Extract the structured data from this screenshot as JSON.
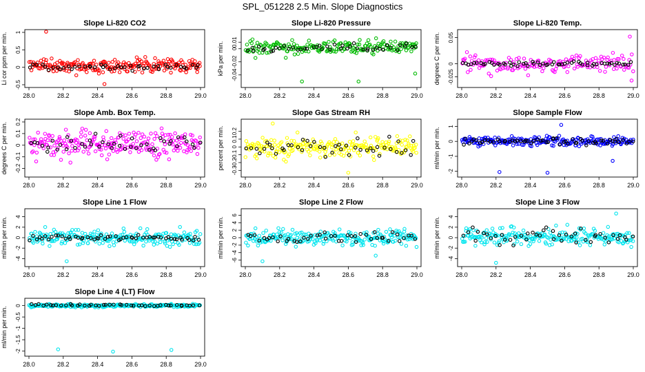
{
  "figure": {
    "title": "SPL_051228  2.5 Min. Slope Diagnostics"
  },
  "chart_data": [
    {
      "type": "scatter",
      "title": "Slope Li-820 CO2",
      "ylabel": "Li cor ppm per min.",
      "xlim": [
        28.0,
        29.0
      ],
      "ylim": [
        -0.5,
        1.0
      ],
      "yticks": [
        -0.5,
        0.0,
        0.5,
        1.0
      ],
      "xticks": [
        28.0,
        28.2,
        28.4,
        28.6,
        28.8,
        29.0
      ],
      "series": [
        {
          "name": "cloud",
          "color": "#ff0000",
          "seed": 11,
          "n": 220,
          "center": 0.05,
          "spread": 0.14
        },
        {
          "name": "overlay",
          "color": "#000000",
          "seed": 12,
          "n": 45,
          "center": 0.02,
          "spread": 0.08
        }
      ],
      "outliers": [
        {
          "x": 28.1,
          "y": 1.02
        },
        {
          "x": 28.44,
          "y": -0.48
        }
      ]
    },
    {
      "type": "scatter",
      "title": "Slope Li-820 Pressure",
      "ylabel": "kPa per min.",
      "xlim": [
        28.0,
        29.0
      ],
      "ylim": [
        -0.055,
        0.025
      ],
      "yticks": [
        -0.04,
        -0.02,
        0.0,
        0.01
      ],
      "xticks": [
        28.0,
        28.2,
        28.4,
        28.6,
        28.8,
        29.0
      ],
      "series": [
        {
          "name": "cloud",
          "color": "#00bb00",
          "seed": 21,
          "n": 200,
          "center": 0.002,
          "spread": 0.008
        },
        {
          "name": "overlay",
          "color": "#000000",
          "seed": 22,
          "n": 45,
          "center": 0.002,
          "spread": 0.004
        }
      ],
      "outliers": [
        {
          "x": 28.33,
          "y": -0.05
        },
        {
          "x": 28.66,
          "y": -0.05
        },
        {
          "x": 28.99,
          "y": -0.038
        }
      ]
    },
    {
      "type": "scatter",
      "title": "Slope Li-820 Temp.",
      "ylabel": "degrees C per min.",
      "xlim": [
        28.0,
        29.0
      ],
      "ylim": [
        -0.04,
        0.06
      ],
      "yticks": [
        -0.025,
        0.0,
        0.05
      ],
      "xticks": [
        28.0,
        28.2,
        28.4,
        28.6,
        28.8,
        29.0
      ],
      "series": [
        {
          "name": "cloud",
          "color": "#ff00ff",
          "seed": 31,
          "n": 160,
          "center": 0.0,
          "spread": 0.013
        },
        {
          "name": "overlay",
          "color": "#000000",
          "seed": 32,
          "n": 60,
          "center": 0.0,
          "spread": 0.003
        }
      ],
      "outliers": [
        {
          "x": 28.98,
          "y": 0.052
        },
        {
          "x": 28.99,
          "y": -0.032
        }
      ]
    },
    {
      "type": "scatter",
      "title": "Slope Amb. Box Temp.",
      "ylabel": "degrees C per min.",
      "xlim": [
        28.0,
        29.0
      ],
      "ylim": [
        -0.25,
        0.2
      ],
      "yticks": [
        -0.2,
        -0.1,
        0.0,
        0.1,
        0.2
      ],
      "xticks": [
        28.0,
        28.2,
        28.4,
        28.6,
        28.8,
        29.0
      ],
      "series": [
        {
          "name": "cloud",
          "color": "#ff00ff",
          "seed": 41,
          "n": 230,
          "center": 0.01,
          "spread": 0.08
        },
        {
          "name": "overlay",
          "color": "#000000",
          "seed": 42,
          "n": 45,
          "center": 0.01,
          "spread": 0.05
        }
      ],
      "outliers": []
    },
    {
      "type": "scatter",
      "title": "Slope Gas Stream RH",
      "ylabel": "percent per min.",
      "xlim": [
        28.0,
        29.0
      ],
      "ylim": [
        -0.35,
        0.32
      ],
      "yticks": [
        -0.3,
        -0.2,
        -0.1,
        0.0,
        0.1,
        0.2
      ],
      "xticks": [
        28.0,
        28.2,
        28.4,
        28.6,
        28.8,
        29.0
      ],
      "series": [
        {
          "name": "cloud",
          "color": "#ffff00",
          "seed": 51,
          "n": 230,
          "center": 0.0,
          "spread": 0.09
        },
        {
          "name": "overlay",
          "color": "#000000",
          "seed": 52,
          "n": 45,
          "center": 0.0,
          "spread": 0.08
        }
      ],
      "outliers": [
        {
          "x": 28.16,
          "y": 0.3
        },
        {
          "x": 28.6,
          "y": -0.33
        }
      ]
    },
    {
      "type": "scatter",
      "title": "Slope Sample Flow",
      "ylabel": "ml/min per min.",
      "xlim": [
        28.0,
        29.0
      ],
      "ylim": [
        -2.2,
        1.3
      ],
      "yticks": [
        -2.0,
        -1.0,
        0.0,
        1.0
      ],
      "xticks": [
        28.0,
        28.2,
        28.4,
        28.6,
        28.8,
        29.0
      ],
      "series": [
        {
          "name": "cloud",
          "color": "#0000ff",
          "seed": 61,
          "n": 220,
          "center": 0.0,
          "spread": 0.22
        },
        {
          "name": "overlay",
          "color": "#000000",
          "seed": 62,
          "n": 60,
          "center": 0.0,
          "spread": 0.15
        }
      ],
      "outliers": [
        {
          "x": 28.22,
          "y": -2.05
        },
        {
          "x": 28.5,
          "y": -2.1
        },
        {
          "x": 28.88,
          "y": -1.3
        },
        {
          "x": 28.58,
          "y": 1.1
        }
      ]
    },
    {
      "type": "scatter",
      "title": "Slope Line 1 Flow",
      "ylabel": "ml/min per min.",
      "xlim": [
        28.0,
        29.0
      ],
      "ylim": [
        -5,
        5
      ],
      "yticks": [
        -4,
        -2,
        0,
        2,
        4
      ],
      "xticks": [
        28.0,
        28.2,
        28.4,
        28.6,
        28.8,
        29.0
      ],
      "series": [
        {
          "name": "cloud",
          "color": "#00e5ee",
          "seed": 71,
          "n": 230,
          "center": 0.0,
          "spread": 1.0
        },
        {
          "name": "overlay",
          "color": "#000000",
          "seed": 72,
          "n": 55,
          "center": 0.0,
          "spread": 0.3
        }
      ],
      "outliers": [
        {
          "x": 28.22,
          "y": -4.5
        }
      ]
    },
    {
      "type": "scatter",
      "title": "Slope Line 2 Flow",
      "ylabel": "ml/min per min.",
      "xlim": [
        28.0,
        29.0
      ],
      "ylim": [
        -7,
        7
      ],
      "yticks": [
        -6,
        -4,
        -2,
        0,
        2,
        4,
        6
      ],
      "xticks": [
        28.0,
        28.2,
        28.4,
        28.6,
        28.8,
        29.0
      ],
      "series": [
        {
          "name": "cloud",
          "color": "#00e5ee",
          "seed": 81,
          "n": 230,
          "center": 0.0,
          "spread": 1.4
        },
        {
          "name": "overlay",
          "color": "#000000",
          "seed": 82,
          "n": 45,
          "center": 0.0,
          "spread": 1.2
        }
      ],
      "outliers": [
        {
          "x": 28.1,
          "y": -6.3
        },
        {
          "x": 28.76,
          "y": -4.8
        }
      ]
    },
    {
      "type": "scatter",
      "title": "Slope Line 3 Flow",
      "ylabel": "ml/min per min.",
      "xlim": [
        28.0,
        29.0
      ],
      "ylim": [
        -5,
        5
      ],
      "yticks": [
        -4,
        -2,
        0,
        2,
        4
      ],
      "xticks": [
        28.0,
        28.2,
        28.4,
        28.6,
        28.8,
        29.0
      ],
      "series": [
        {
          "name": "cloud",
          "color": "#00e5ee",
          "seed": 91,
          "n": 230,
          "center": 0.2,
          "spread": 1.2
        },
        {
          "name": "overlay",
          "color": "#000000",
          "seed": 92,
          "n": 45,
          "center": 0.2,
          "spread": 1.0
        }
      ],
      "outliers": [
        {
          "x": 28.2,
          "y": -4.8
        },
        {
          "x": 28.9,
          "y": 4.6
        }
      ]
    },
    {
      "type": "scatter",
      "title": "Slope Line 4 (LT) Flow",
      "ylabel": "ml/min per min.",
      "xlim": [
        28.0,
        29.0
      ],
      "ylim": [
        -2.1,
        0.2
      ],
      "yticks": [
        -2.0,
        -1.5,
        -1.0,
        -0.5,
        0.0
      ],
      "xticks": [
        28.0,
        28.2,
        28.4,
        28.6,
        28.8,
        29.0
      ],
      "series": [
        {
          "name": "cloud",
          "color": "#00e5ee",
          "seed": 101,
          "n": 240,
          "center": 0.0,
          "spread": 0.045
        },
        {
          "name": "overlay",
          "color": "#000000",
          "seed": 102,
          "n": 45,
          "center": 0.02,
          "spread": 0.03
        }
      ],
      "outliers": [
        {
          "x": 28.17,
          "y": -1.92
        },
        {
          "x": 28.49,
          "y": -2.02
        },
        {
          "x": 28.83,
          "y": -1.95
        }
      ]
    }
  ]
}
